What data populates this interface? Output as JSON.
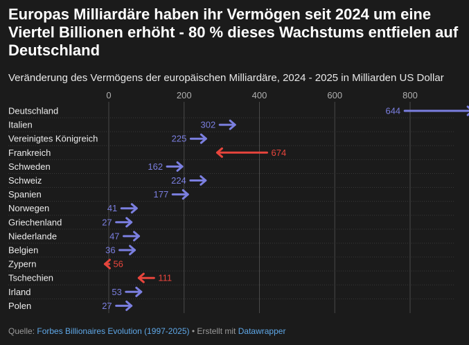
{
  "title": "Europas Milliardäre haben ihr Vermögen seit 2024 um eine Viertel Billionen erhöht - 80 % dieses Wachstums entfielen auf Deutschland",
  "subtitle": "Veränderung des Vermögens der europäischen Milliardäre, 2024 - 2025 in Milliarden US Dollar",
  "footer": {
    "prefix": "Quelle:",
    "source_link": "Forbes Billionaires Evolution (1997-2025)",
    "separator": "• Erstellt mit",
    "tool_link": "Datawrapper"
  },
  "colors": {
    "background": "#1b1b1b",
    "increase": "#7b7fe0",
    "decrease": "#e8453c",
    "grid": "#4a4a4a",
    "tick_text": "#b0b0b0",
    "label_text": "#ececec"
  },
  "chart_data": {
    "type": "arrow",
    "x_ticks": [
      0,
      200,
      400,
      600,
      800
    ],
    "xlim": [
      0,
      800
    ],
    "rows": [
      {
        "label": "Deutschland",
        "value": 644,
        "direction": "increase"
      },
      {
        "label": "Italien",
        "value": 302,
        "direction": "increase"
      },
      {
        "label": "Vereinigtes Königreich",
        "value": 225,
        "direction": "increase"
      },
      {
        "label": "Frankreich",
        "value": 674,
        "direction": "decrease"
      },
      {
        "label": "Schweden",
        "value": 162,
        "direction": "increase"
      },
      {
        "label": "Schweiz",
        "value": 224,
        "direction": "increase"
      },
      {
        "label": "Spanien",
        "value": 177,
        "direction": "increase"
      },
      {
        "label": "Norwegen",
        "value": 41,
        "direction": "increase"
      },
      {
        "label": "Griechenland",
        "value": 27,
        "direction": "increase"
      },
      {
        "label": "Niederlande",
        "value": 47,
        "direction": "increase"
      },
      {
        "label": "Belgien",
        "value": 36,
        "direction": "increase"
      },
      {
        "label": "Zypern",
        "value": 56,
        "direction": "decrease"
      },
      {
        "label": "Tschechien",
        "value": 111,
        "direction": "decrease"
      },
      {
        "label": "Irland",
        "value": 53,
        "direction": "increase"
      },
      {
        "label": "Polen",
        "value": 27,
        "direction": "increase"
      }
    ]
  }
}
